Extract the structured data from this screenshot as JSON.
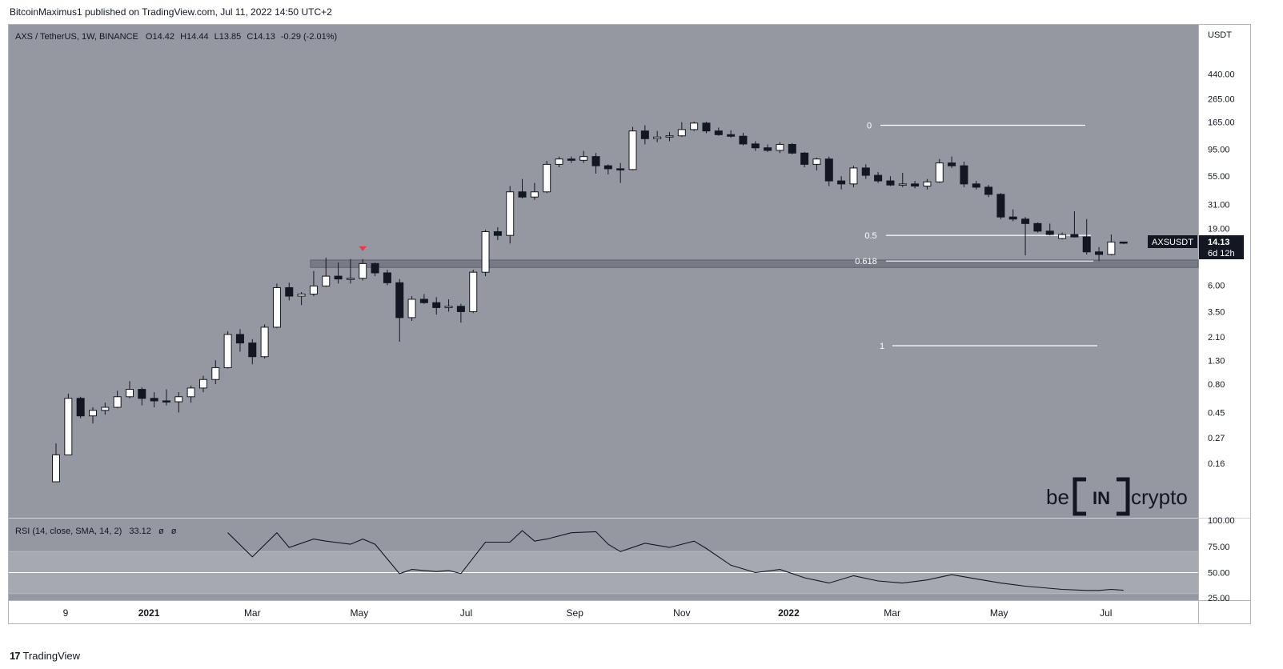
{
  "header": {
    "publisher": "BitcoinMaximus1 published on TradingView.com, Jul 11, 2022 14:50 UTC+2"
  },
  "footer": {
    "logo_mark": "17",
    "brand": "TradingView"
  },
  "symbol_line": {
    "name": "AXS / TetherUS, 1W, BINANCE",
    "o_label": "O",
    "o": "14.42",
    "h_label": "H",
    "h": "14.44",
    "l_label": "L",
    "l": "13.85",
    "c_label": "C",
    "c": "14.13",
    "change": "-0.29 (-2.01%)"
  },
  "rsi_line": {
    "label": "RSI (14, close, SMA, 14, 2)",
    "value": "33.12",
    "extra1": "ø",
    "extra2": "ø"
  },
  "price_axis": {
    "currency": "USDT",
    "ticks": [
      "440.00",
      "265.00",
      "165.00",
      "95.00",
      "55.00",
      "31.00",
      "19.00",
      "6.00",
      "3.50",
      "2.10",
      "1.30",
      "0.80",
      "0.45",
      "0.27",
      "0.16"
    ]
  },
  "rsi_axis": {
    "ticks": [
      "100.00",
      "75.00",
      "50.00",
      "25.00"
    ]
  },
  "price_tag": {
    "symbol": "AXSUSDT",
    "price": "14.13",
    "countdown": "6d 12h"
  },
  "time_axis": {
    "labels": [
      "9",
      "2021",
      "Mar",
      "May",
      "Jul",
      "Sep",
      "Nov",
      "2022",
      "Mar",
      "May",
      "Jul"
    ]
  },
  "watermark": {
    "left": "be",
    "middle": "IN",
    "right": "crypto"
  },
  "colors": {
    "pane": "#9598a1",
    "up_candle": "#ffffff",
    "down_candle": "#131722",
    "fib_line": "#ffffff",
    "marker": "#f23645",
    "zone": "#787b86"
  },
  "chart_data": [
    {
      "type": "candlestick",
      "title": "AXS / TetherUS, 1W, BINANCE",
      "scale": "log",
      "ylim": [
        0.1,
        700
      ],
      "series_name": "AXSUSDT",
      "candles": [
        {
          "date": "2020-11-09",
          "o": 0.11,
          "h": 0.24,
          "l": 0.11,
          "c": 0.19
        },
        {
          "date": "2020-11-16",
          "o": 0.19,
          "h": 0.66,
          "l": 0.19,
          "c": 0.6
        },
        {
          "date": "2020-11-23",
          "o": 0.6,
          "h": 0.62,
          "l": 0.4,
          "c": 0.42
        },
        {
          "date": "2020-11-30",
          "o": 0.42,
          "h": 0.5,
          "l": 0.36,
          "c": 0.47
        },
        {
          "date": "2020-12-07",
          "o": 0.47,
          "h": 0.55,
          "l": 0.43,
          "c": 0.5
        },
        {
          "date": "2020-12-14",
          "o": 0.5,
          "h": 0.7,
          "l": 0.49,
          "c": 0.62
        },
        {
          "date": "2020-12-21",
          "o": 0.62,
          "h": 0.85,
          "l": 0.6,
          "c": 0.72
        },
        {
          "date": "2020-12-28",
          "o": 0.72,
          "h": 0.75,
          "l": 0.52,
          "c": 0.6
        },
        {
          "date": "2021-01-04",
          "o": 0.6,
          "h": 0.68,
          "l": 0.5,
          "c": 0.57
        },
        {
          "date": "2021-01-11",
          "o": 0.57,
          "h": 0.72,
          "l": 0.52,
          "c": 0.56
        },
        {
          "date": "2021-01-18",
          "o": 0.56,
          "h": 0.68,
          "l": 0.45,
          "c": 0.62
        },
        {
          "date": "2021-01-25",
          "o": 0.62,
          "h": 0.78,
          "l": 0.55,
          "c": 0.74
        },
        {
          "date": "2021-02-01",
          "o": 0.74,
          "h": 0.95,
          "l": 0.68,
          "c": 0.88
        },
        {
          "date": "2021-02-08",
          "o": 0.88,
          "h": 1.3,
          "l": 0.8,
          "c": 1.12
        },
        {
          "date": "2021-02-15",
          "o": 1.12,
          "h": 2.35,
          "l": 1.1,
          "c": 2.2
        },
        {
          "date": "2021-02-22",
          "o": 2.2,
          "h": 2.45,
          "l": 1.55,
          "c": 1.85
        },
        {
          "date": "2021-03-01",
          "o": 1.85,
          "h": 2.0,
          "l": 1.2,
          "c": 1.4
        },
        {
          "date": "2021-03-08",
          "o": 1.4,
          "h": 2.7,
          "l": 1.35,
          "c": 2.55
        },
        {
          "date": "2021-03-15",
          "o": 2.55,
          "h": 6.2,
          "l": 2.5,
          "c": 5.7
        },
        {
          "date": "2021-03-22",
          "o": 5.7,
          "h": 6.3,
          "l": 4.4,
          "c": 4.8
        },
        {
          "date": "2021-03-29",
          "o": 4.8,
          "h": 5.2,
          "l": 4.0,
          "c": 5.0
        },
        {
          "date": "2021-04-05",
          "o": 5.0,
          "h": 8.0,
          "l": 4.8,
          "c": 5.9
        },
        {
          "date": "2021-04-12",
          "o": 5.9,
          "h": 10.5,
          "l": 5.8,
          "c": 7.2
        },
        {
          "date": "2021-04-19",
          "o": 7.2,
          "h": 9.5,
          "l": 6.2,
          "c": 6.8
        },
        {
          "date": "2021-04-26",
          "o": 6.8,
          "h": 10.2,
          "l": 6.2,
          "c": 6.9
        },
        {
          "date": "2021-05-03",
          "o": 6.9,
          "h": 10.2,
          "l": 6.6,
          "c": 9.3
        },
        {
          "date": "2021-05-10",
          "o": 9.3,
          "h": 9.5,
          "l": 7.2,
          "c": 7.7
        },
        {
          "date": "2021-05-17",
          "o": 7.7,
          "h": 8.2,
          "l": 6.0,
          "c": 6.3
        },
        {
          "date": "2021-05-24",
          "o": 6.3,
          "h": 6.8,
          "l": 1.9,
          "c": 3.1
        },
        {
          "date": "2021-05-31",
          "o": 3.1,
          "h": 4.8,
          "l": 2.9,
          "c": 4.5
        },
        {
          "date": "2021-06-07",
          "o": 4.5,
          "h": 5.0,
          "l": 4.1,
          "c": 4.2
        },
        {
          "date": "2021-06-14",
          "o": 4.2,
          "h": 4.7,
          "l": 3.3,
          "c": 3.8
        },
        {
          "date": "2021-06-21",
          "o": 3.8,
          "h": 4.5,
          "l": 3.5,
          "c": 3.9
        },
        {
          "date": "2021-06-28",
          "o": 3.9,
          "h": 4.1,
          "l": 2.8,
          "c": 3.5
        },
        {
          "date": "2021-07-05",
          "o": 3.5,
          "h": 8.2,
          "l": 3.4,
          "c": 7.8
        },
        {
          "date": "2021-07-12",
          "o": 7.8,
          "h": 18.5,
          "l": 7.2,
          "c": 17.8
        },
        {
          "date": "2021-07-19",
          "o": 17.8,
          "h": 19.5,
          "l": 15.0,
          "c": 16.5
        },
        {
          "date": "2021-07-26",
          "o": 16.5,
          "h": 45.0,
          "l": 14.0,
          "c": 40.0
        },
        {
          "date": "2021-08-02",
          "o": 40.0,
          "h": 52.0,
          "l": 35.0,
          "c": 36.0
        },
        {
          "date": "2021-08-09",
          "o": 36.0,
          "h": 48.0,
          "l": 34.0,
          "c": 40.0
        },
        {
          "date": "2021-08-16",
          "o": 40.0,
          "h": 75.0,
          "l": 39.0,
          "c": 70.0
        },
        {
          "date": "2021-08-23",
          "o": 70.0,
          "h": 82.0,
          "l": 66.0,
          "c": 78.0
        },
        {
          "date": "2021-08-30",
          "o": 78.0,
          "h": 82.0,
          "l": 72.0,
          "c": 76.0
        },
        {
          "date": "2021-09-06",
          "o": 76.0,
          "h": 92.0,
          "l": 72.0,
          "c": 82.0
        },
        {
          "date": "2021-09-13",
          "o": 82.0,
          "h": 88.0,
          "l": 58.0,
          "c": 68.0
        },
        {
          "date": "2021-09-20",
          "o": 68.0,
          "h": 70.0,
          "l": 57.0,
          "c": 64.0
        },
        {
          "date": "2021-09-27",
          "o": 64.0,
          "h": 72.0,
          "l": 48.0,
          "c": 63.0
        },
        {
          "date": "2021-10-04",
          "o": 63.0,
          "h": 150.0,
          "l": 62.0,
          "c": 138.0
        },
        {
          "date": "2021-10-11",
          "o": 138.0,
          "h": 155.0,
          "l": 105.0,
          "c": 118.0
        },
        {
          "date": "2021-10-18",
          "o": 118.0,
          "h": 138.0,
          "l": 110.0,
          "c": 122.0
        },
        {
          "date": "2021-10-25",
          "o": 122.0,
          "h": 135.0,
          "l": 112.0,
          "c": 125.0
        },
        {
          "date": "2021-11-01",
          "o": 125.0,
          "h": 165.0,
          "l": 122.0,
          "c": 142.0
        },
        {
          "date": "2021-11-08",
          "o": 142.0,
          "h": 167.0,
          "l": 138.0,
          "c": 162.0
        },
        {
          "date": "2021-11-15",
          "o": 162.0,
          "h": 166.0,
          "l": 132.0,
          "c": 138.0
        },
        {
          "date": "2021-11-22",
          "o": 138.0,
          "h": 148.0,
          "l": 125.0,
          "c": 128.0
        },
        {
          "date": "2021-11-29",
          "o": 128.0,
          "h": 140.0,
          "l": 120.0,
          "c": 124.0
        },
        {
          "date": "2021-12-06",
          "o": 124.0,
          "h": 133.0,
          "l": 103.0,
          "c": 106.0
        },
        {
          "date": "2021-12-13",
          "o": 106.0,
          "h": 112.0,
          "l": 92.0,
          "c": 98.0
        },
        {
          "date": "2021-12-20",
          "o": 98.0,
          "h": 105.0,
          "l": 90.0,
          "c": 93.0
        },
        {
          "date": "2021-12-27",
          "o": 93.0,
          "h": 110.0,
          "l": 88.0,
          "c": 105.0
        },
        {
          "date": "2022-01-03",
          "o": 105.0,
          "h": 108.0,
          "l": 86.0,
          "c": 88.0
        },
        {
          "date": "2022-01-10",
          "o": 88.0,
          "h": 90.0,
          "l": 66.0,
          "c": 70.0
        },
        {
          "date": "2022-01-17",
          "o": 70.0,
          "h": 80.0,
          "l": 62.0,
          "c": 78.0
        },
        {
          "date": "2022-01-24",
          "o": 78.0,
          "h": 82.0,
          "l": 45.0,
          "c": 50.0
        },
        {
          "date": "2022-01-31",
          "o": 50.0,
          "h": 55.0,
          "l": 42.0,
          "c": 47.0
        },
        {
          "date": "2022-02-07",
          "o": 47.0,
          "h": 68.0,
          "l": 44.0,
          "c": 65.0
        },
        {
          "date": "2022-02-14",
          "o": 65.0,
          "h": 70.0,
          "l": 52.0,
          "c": 56.0
        },
        {
          "date": "2022-02-21",
          "o": 56.0,
          "h": 60.0,
          "l": 48.0,
          "c": 50.0
        },
        {
          "date": "2022-02-28",
          "o": 50.0,
          "h": 55.0,
          "l": 45.0,
          "c": 46.0
        },
        {
          "date": "2022-03-07",
          "o": 46.0,
          "h": 59.0,
          "l": 44.0,
          "c": 47.0
        },
        {
          "date": "2022-03-14",
          "o": 47.0,
          "h": 50.0,
          "l": 43.0,
          "c": 45.0
        },
        {
          "date": "2022-03-21",
          "o": 45.0,
          "h": 52.0,
          "l": 42.0,
          "c": 49.0
        },
        {
          "date": "2022-03-28",
          "o": 49.0,
          "h": 78.0,
          "l": 48.0,
          "c": 72.0
        },
        {
          "date": "2022-04-04",
          "o": 72.0,
          "h": 82.0,
          "l": 65.0,
          "c": 68.0
        },
        {
          "date": "2022-04-11",
          "o": 68.0,
          "h": 74.0,
          "l": 44.0,
          "c": 47.0
        },
        {
          "date": "2022-04-18",
          "o": 47.0,
          "h": 50.0,
          "l": 42.0,
          "c": 44.0
        },
        {
          "date": "2022-04-25",
          "o": 44.0,
          "h": 46.0,
          "l": 36.0,
          "c": 38.0
        },
        {
          "date": "2022-05-02",
          "o": 38.0,
          "h": 39.0,
          "l": 23.0,
          "c": 24.0
        },
        {
          "date": "2022-05-09",
          "o": 24.0,
          "h": 28.0,
          "l": 22.0,
          "c": 23.0
        },
        {
          "date": "2022-05-16",
          "o": 23.0,
          "h": 24.0,
          "l": 11.0,
          "c": 21.0
        },
        {
          "date": "2022-05-23",
          "o": 21.0,
          "h": 21.5,
          "l": 17.5,
          "c": 18.0
        },
        {
          "date": "2022-05-30",
          "o": 18.0,
          "h": 21.0,
          "l": 16.5,
          "c": 16.8
        },
        {
          "date": "2022-06-06",
          "o": 15.5,
          "h": 17.5,
          "l": 15.2,
          "c": 16.8
        },
        {
          "date": "2022-06-13",
          "o": 16.8,
          "h": 27.0,
          "l": 15.8,
          "c": 16.0
        },
        {
          "date": "2022-06-20",
          "o": 16.0,
          "h": 23.0,
          "l": 11.2,
          "c": 11.8
        },
        {
          "date": "2022-06-27",
          "o": 11.8,
          "h": 13.0,
          "l": 9.8,
          "c": 11.2
        },
        {
          "date": "2022-07-04",
          "o": 11.2,
          "h": 16.8,
          "l": 11.0,
          "c": 14.42
        },
        {
          "date": "2022-07-11",
          "o": 14.42,
          "h": 14.44,
          "l": 13.85,
          "c": 14.13
        }
      ],
      "fibonacci": [
        {
          "label": "0",
          "price": 155.0
        },
        {
          "label": "0.5",
          "price": 16.5
        },
        {
          "label": "0.618",
          "price": 9.8
        },
        {
          "label": "1",
          "price": 1.75
        }
      ],
      "horizontal_zone": {
        "start": "2021-04-05",
        "low": 8.6,
        "high": 10.0
      },
      "marker": {
        "date": "2021-05-03",
        "shape": "down-triangle"
      },
      "xlabel": "",
      "ylabel": "",
      "grid": false,
      "legend": "none"
    },
    {
      "type": "line",
      "title": "RSI (14, close, SMA, 14, 2)",
      "ylim": [
        25,
        100
      ],
      "reference_lines": [
        70,
        50,
        30
      ],
      "shaded_band": [
        30,
        70
      ],
      "x": [
        "2021-02-15",
        "2021-03-01",
        "2021-03-15",
        "2021-03-22",
        "2021-04-05",
        "2021-04-12",
        "2021-04-26",
        "2021-05-03",
        "2021-05-10",
        "2021-05-24",
        "2021-05-31",
        "2021-06-07",
        "2021-06-14",
        "2021-06-21",
        "2021-06-28",
        "2021-07-12",
        "2021-07-26",
        "2021-08-02",
        "2021-08-09",
        "2021-08-16",
        "2021-08-30",
        "2021-09-13",
        "2021-09-20",
        "2021-09-27",
        "2021-10-11",
        "2021-10-25",
        "2021-11-08",
        "2021-11-15",
        "2021-11-29",
        "2021-12-13",
        "2021-12-27",
        "2022-01-10",
        "2022-01-24",
        "2022-02-07",
        "2022-02-21",
        "2022-03-07",
        "2022-03-21",
        "2022-04-04",
        "2022-04-18",
        "2022-05-02",
        "2022-05-16",
        "2022-06-06",
        "2022-06-20",
        "2022-06-27",
        "2022-07-04",
        "2022-07-11"
      ],
      "values": [
        88,
        65,
        88,
        74,
        82,
        80,
        77,
        82,
        77,
        49,
        53,
        52,
        51,
        52,
        49,
        79,
        79,
        90,
        80,
        82,
        88,
        89,
        77,
        70,
        78,
        74,
        80,
        73,
        57,
        50,
        53,
        45,
        40,
        47,
        42,
        40,
        43,
        48,
        44,
        40,
        37,
        34,
        33,
        33,
        34,
        33.12
      ]
    }
  ]
}
